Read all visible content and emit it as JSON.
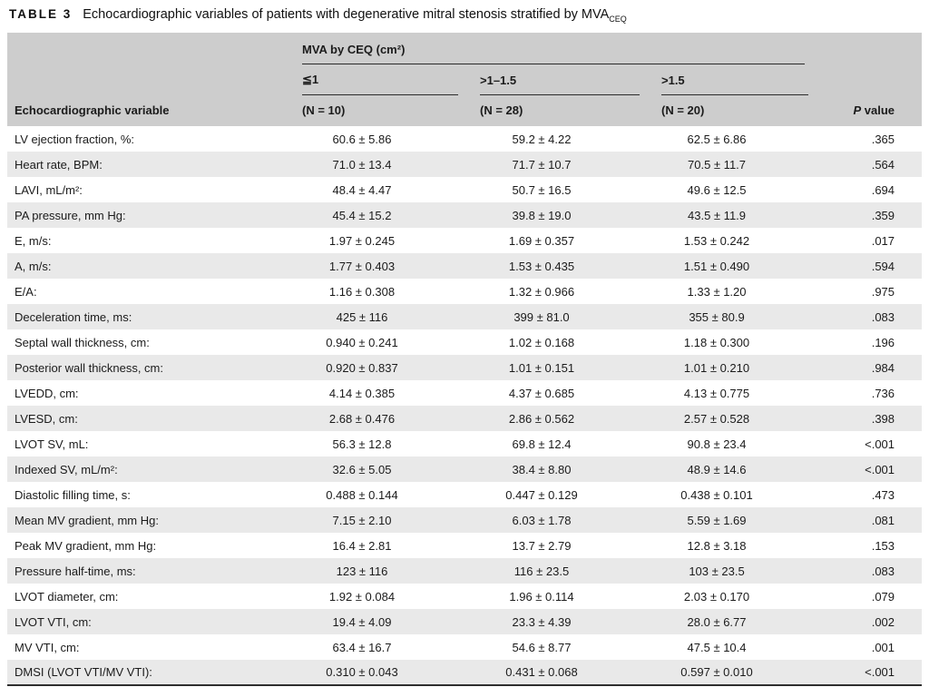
{
  "page": {
    "title_label": "TABLE 3",
    "title_text": "Echocardiographic variables of patients with degenerative mitral stenosis stratified by MVA",
    "title_subscript": "CEQ"
  },
  "table": {
    "group_header": "MVA by CEQ (cm²)",
    "subcolumns": [
      "≦1",
      ">1–1.5",
      ">1.5"
    ],
    "variable_header": "Echocardiographic variable",
    "n_headers": [
      "(N = 10)",
      "(N = 28)",
      "(N = 20)"
    ],
    "p_header_italic": "P",
    "p_header_rest": " value",
    "colors": {
      "header_bg": "#cdcdcd",
      "stripe_bg": "#e9e9e9",
      "rule": "#2b2b2b",
      "text": "#1b1b1b"
    },
    "rows": [
      {
        "label": "LV ejection fraction, %:",
        "values": [
          "60.6 ± 5.86",
          "59.2 ± 4.22",
          "62.5 ± 6.86"
        ],
        "p": ".365"
      },
      {
        "label": "Heart rate, BPM:",
        "values": [
          "71.0 ± 13.4",
          "71.7 ± 10.7",
          "70.5 ± 11.7"
        ],
        "p": ".564"
      },
      {
        "label": "LAVI, mL/m²:",
        "values": [
          "48.4 ± 4.47",
          "50.7 ± 16.5",
          "49.6 ± 12.5"
        ],
        "p": ".694"
      },
      {
        "label": "PA pressure, mm Hg:",
        "values": [
          "45.4 ± 15.2",
          "39.8 ± 19.0",
          "43.5 ± 11.9"
        ],
        "p": ".359"
      },
      {
        "label": "E, m/s:",
        "values": [
          "1.97 ± 0.245",
          "1.69 ± 0.357",
          "1.53 ± 0.242"
        ],
        "p": ".017"
      },
      {
        "label": "A, m/s:",
        "values": [
          "1.77 ± 0.403",
          "1.53 ± 0.435",
          "1.51 ± 0.490"
        ],
        "p": ".594"
      },
      {
        "label": "E/A:",
        "values": [
          "1.16 ± 0.308",
          "1.32 ± 0.966",
          "1.33 ± 1.20"
        ],
        "p": ".975"
      },
      {
        "label": "Deceleration time, ms:",
        "values": [
          "425 ± 116",
          "399 ± 81.0",
          "355 ± 80.9"
        ],
        "p": ".083"
      },
      {
        "label": "Septal wall thickness, cm:",
        "values": [
          "0.940 ± 0.241",
          "1.02 ± 0.168",
          "1.18 ± 0.300"
        ],
        "p": ".196"
      },
      {
        "label": "Posterior wall thickness, cm:",
        "values": [
          "0.920 ± 0.837",
          "1.01 ± 0.151",
          "1.01 ± 0.210"
        ],
        "p": ".984"
      },
      {
        "label": "LVEDD, cm:",
        "values": [
          "4.14 ± 0.385",
          "4.37 ± 0.685",
          "4.13 ± 0.775"
        ],
        "p": ".736"
      },
      {
        "label": "LVESD, cm:",
        "values": [
          "2.68 ± 0.476",
          "2.86 ± 0.562",
          "2.57 ± 0.528"
        ],
        "p": ".398"
      },
      {
        "label": "LVOT SV, mL:",
        "values": [
          "56.3 ± 12.8",
          "69.8 ± 12.4",
          "90.8 ± 23.4"
        ],
        "p": "<.001"
      },
      {
        "label": "Indexed SV, mL/m²:",
        "values": [
          "32.6 ± 5.05",
          "38.4 ± 8.80",
          "48.9 ± 14.6"
        ],
        "p": "<.001"
      },
      {
        "label": "Diastolic filling time, s:",
        "values": [
          "0.488 ± 0.144",
          "0.447 ± 0.129",
          "0.438 ± 0.101"
        ],
        "p": ".473"
      },
      {
        "label": "Mean MV gradient, mm Hg:",
        "values": [
          "7.15 ± 2.10",
          "6.03 ± 1.78",
          "5.59 ± 1.69"
        ],
        "p": ".081"
      },
      {
        "label": "Peak MV gradient, mm Hg:",
        "values": [
          "16.4 ± 2.81",
          "13.7 ± 2.79",
          "12.8 ± 3.18"
        ],
        "p": ".153"
      },
      {
        "label": "Pressure half-time, ms:",
        "values": [
          "123 ± 116",
          "116 ± 23.5",
          "103 ± 23.5"
        ],
        "p": ".083"
      },
      {
        "label": "LVOT diameter, cm:",
        "values": [
          "1.92 ± 0.084",
          "1.96 ± 0.114",
          "2.03 ± 0.170"
        ],
        "p": ".079"
      },
      {
        "label": "LVOT VTI, cm:",
        "values": [
          "19.4 ± 4.09",
          "23.3 ± 4.39",
          "28.0 ± 6.77"
        ],
        "p": ".002"
      },
      {
        "label": "MV VTI, cm:",
        "values": [
          "63.4 ± 16.7",
          "54.6 ± 8.77",
          "47.5 ± 10.4"
        ],
        "p": ".001"
      },
      {
        "label": "DMSI (LVOT VTI/MV VTI):",
        "values": [
          "0.310 ± 0.043",
          "0.431 ± 0.068",
          "0.597 ± 0.010"
        ],
        "p": "<.001"
      }
    ]
  }
}
